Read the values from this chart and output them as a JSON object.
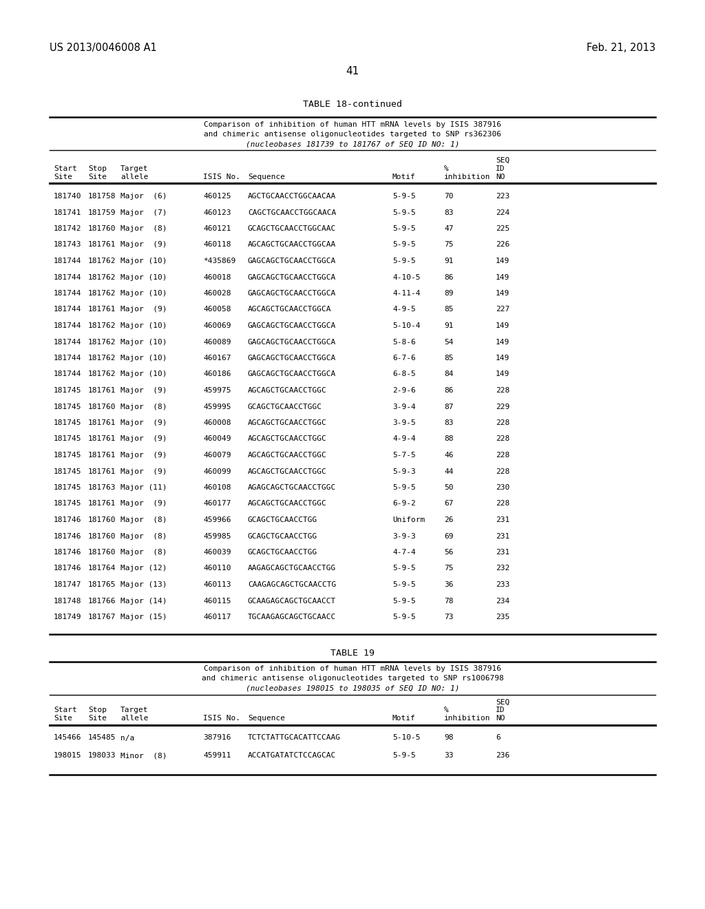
{
  "header_left": "US 2013/0046008 A1",
  "header_right": "Feb. 21, 2013",
  "page_number": "41",
  "table18_title": "TABLE 18-continued",
  "table18_subtitle1": "Comparison of inhibition of human HTT mRNA levels by ISIS 387916",
  "table18_subtitle2": "and chimeric antisense oligonucleotides targeted to SNP rs362306",
  "table18_subtitle3": "(nucleobases 181739 to 181767 of SEQ ID NO: 1)",
  "table18_rows": [
    [
      "181740",
      "181758",
      "Major  (6)",
      "460125",
      "AGCTGCAACCTGGCAACAA",
      "5-9-5",
      "70",
      "223"
    ],
    [
      "181741",
      "181759",
      "Major  (7)",
      "460123",
      "CAGCTGCAACCTGGCAACA",
      "5-9-5",
      "83",
      "224"
    ],
    [
      "181742",
      "181760",
      "Major  (8)",
      "460121",
      "GCAGCTGCAACCTGGCAAC",
      "5-9-5",
      "47",
      "225"
    ],
    [
      "181743",
      "181761",
      "Major  (9)",
      "460118",
      "AGCAGCTGCAACCTGGCAA",
      "5-9-5",
      "75",
      "226"
    ],
    [
      "181744",
      "181762",
      "Major (10)",
      "*435869",
      "GAGCAGCTGCAACCTGGCA",
      "5-9-5",
      "91",
      "149"
    ],
    [
      "181744",
      "181762",
      "Major (10)",
      "460018",
      "GAGCAGCTGCAACCTGGCA",
      "4-10-5",
      "86",
      "149"
    ],
    [
      "181744",
      "181762",
      "Major (10)",
      "460028",
      "GAGCAGCTGCAACCTGGCA",
      "4-11-4",
      "89",
      "149"
    ],
    [
      "181744",
      "181761",
      "Major  (9)",
      "460058",
      "AGCAGCTGCAACCTGGCA",
      "4-9-5",
      "85",
      "227"
    ],
    [
      "181744",
      "181762",
      "Major (10)",
      "460069",
      "GAGCAGCTGCAACCTGGCA",
      "5-10-4",
      "91",
      "149"
    ],
    [
      "181744",
      "181762",
      "Major (10)",
      "460089",
      "GAGCAGCTGCAACCTGGCA",
      "5-8-6",
      "54",
      "149"
    ],
    [
      "181744",
      "181762",
      "Major (10)",
      "460167",
      "GAGCAGCTGCAACCTGGCA",
      "6-7-6",
      "85",
      "149"
    ],
    [
      "181744",
      "181762",
      "Major (10)",
      "460186",
      "GAGCAGCTGCAACCTGGCA",
      "6-8-5",
      "84",
      "149"
    ],
    [
      "181745",
      "181761",
      "Major  (9)",
      "459975",
      "AGCAGCTGCAACCTGGC",
      "2-9-6",
      "86",
      "228"
    ],
    [
      "181745",
      "181760",
      "Major  (8)",
      "459995",
      "GCAGCTGCAACCTGGC",
      "3-9-4",
      "87",
      "229"
    ],
    [
      "181745",
      "181761",
      "Major  (9)",
      "460008",
      "AGCAGCTGCAACCTGGC",
      "3-9-5",
      "83",
      "228"
    ],
    [
      "181745",
      "181761",
      "Major  (9)",
      "460049",
      "AGCAGCTGCAACCTGGC",
      "4-9-4",
      "88",
      "228"
    ],
    [
      "181745",
      "181761",
      "Major  (9)",
      "460079",
      "AGCAGCTGCAACCTGGC",
      "5-7-5",
      "46",
      "228"
    ],
    [
      "181745",
      "181761",
      "Major  (9)",
      "460099",
      "AGCAGCTGCAACCTGGC",
      "5-9-3",
      "44",
      "228"
    ],
    [
      "181745",
      "181763",
      "Major (11)",
      "460108",
      "AGAGCAGCTGCAACCTGGC",
      "5-9-5",
      "50",
      "230"
    ],
    [
      "181745",
      "181761",
      "Major  (9)",
      "460177",
      "AGCAGCTGCAACCTGGC",
      "6-9-2",
      "67",
      "228"
    ],
    [
      "181746",
      "181760",
      "Major  (8)",
      "459966",
      "GCAGCTGCAACCTGG",
      "Uniform",
      "26",
      "231"
    ],
    [
      "181746",
      "181760",
      "Major  (8)",
      "459985",
      "GCAGCTGCAACCTGG",
      "3-9-3",
      "69",
      "231"
    ],
    [
      "181746",
      "181760",
      "Major  (8)",
      "460039",
      "GCAGCTGCAACCTGG",
      "4-7-4",
      "56",
      "231"
    ],
    [
      "181746",
      "181764",
      "Major (12)",
      "460110",
      "AAGAGCAGCTGCAACCTGG",
      "5-9-5",
      "75",
      "232"
    ],
    [
      "181747",
      "181765",
      "Major (13)",
      "460113",
      "CAAGAGCAGCTGCAACCTG",
      "5-9-5",
      "36",
      "233"
    ],
    [
      "181748",
      "181766",
      "Major (14)",
      "460115",
      "GCAAGAGCAGCTGCAACCT",
      "5-9-5",
      "78",
      "234"
    ],
    [
      "181749",
      "181767",
      "Major (15)",
      "460117",
      "TGCAAGAGCAGCTGCAACC",
      "5-9-5",
      "73",
      "235"
    ]
  ],
  "table19_title": "TABLE 19",
  "table19_subtitle1": "Comparison of inhibition of human HTT mRNA levels by ISIS 387916",
  "table19_subtitle2": "and chimeric antisense oligonucleotides targeted to SNP rs1006798",
  "table19_subtitle3": "(nucleobases 198015 to 198035 of SEQ ID NO: 1)",
  "table19_rows": [
    [
      "145466",
      "145485",
      "n/a",
      "387916",
      "TCTCTATTGCACATTCCAAG",
      "5-10-5",
      "98",
      "6"
    ],
    [
      "198015",
      "198033",
      "Minor  (8)",
      "459911",
      "ACCATGATATCTCCAGCAC",
      "5-9-5",
      "33",
      "236"
    ]
  ],
  "bg_color": "#ffffff",
  "text_color": "#000000"
}
